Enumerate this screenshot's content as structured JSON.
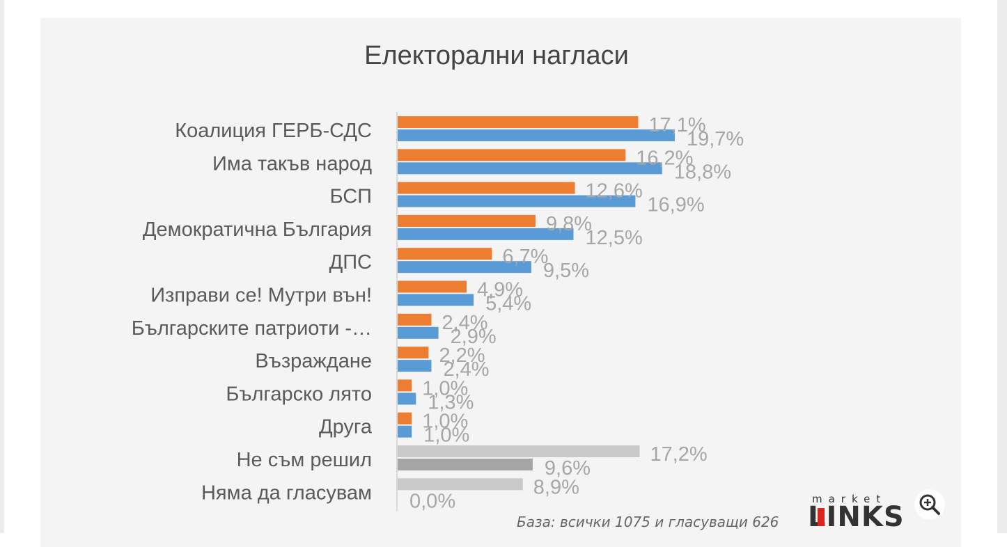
{
  "chart_data": {
    "type": "bar",
    "title": "Електорални нагласи",
    "categories": [
      "Коалиция ГЕРБ-СДС",
      "Има такъв народ",
      "БСП",
      "Демократична България",
      "ДПС",
      "Изправи се! Мутри вън!",
      "Българските патриоти -…",
      "Възраждане",
      "Българско лято",
      "Друга",
      "Не съм решил",
      "Няма да гласувам"
    ],
    "series": [
      {
        "values": [
          17.1,
          16.2,
          12.6,
          9.8,
          6.7,
          4.9,
          2.4,
          2.2,
          1.0,
          1.0,
          17.2,
          8.9
        ]
      },
      {
        "values": [
          19.7,
          18.8,
          16.9,
          12.5,
          9.5,
          5.4,
          2.9,
          2.4,
          1.3,
          1.0,
          9.6,
          0.0
        ]
      }
    ],
    "value_labels": [
      [
        "17,1%",
        "16,2%",
        "12,6%",
        "9,8%",
        "6,7%",
        "4,9%",
        "2,4%",
        "2,2%",
        "1,0%",
        "1,0%",
        "17,2%",
        "8,9%"
      ],
      [
        "19,7%",
        "18,8%",
        "16,9%",
        "12,5%",
        "9,5%",
        "5,4%",
        "2,9%",
        "2,4%",
        "1,3%",
        "1,0%",
        "9,6%",
        "0,0%"
      ]
    ],
    "colors": {
      "series1": "#ed7d31",
      "series2": "#5b9bd5",
      "undecided_series1": "#c9c9c9",
      "undecided_series2": "#a5a5a5",
      "axis": "#d9d9d9",
      "value_text": "#a6a6a6"
    },
    "orientation": "horizontal",
    "grid": false,
    "legend": "none"
  },
  "footer": {
    "base_note": "База: всички 1075 и гласуващи 626"
  },
  "logo": {
    "small": "market",
    "main": "LINKS"
  },
  "icons": {
    "zoom": "zoom-in-icon"
  }
}
